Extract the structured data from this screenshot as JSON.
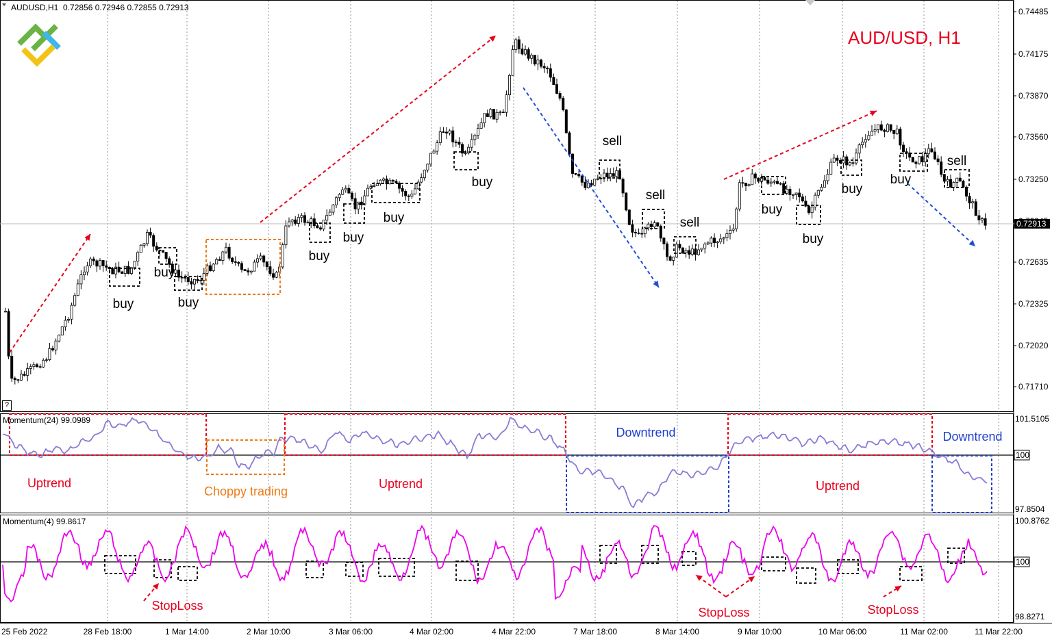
{
  "header": {
    "symbol": "AUDUSD,H1",
    "ohlc": "0.72856 0.72946 0.72855 0.72913"
  },
  "help_glyph": "?",
  "chart_title": "AUD/USD, H1",
  "colors": {
    "title": "#e8001c",
    "up_arrow": "#e8001c",
    "down_arrow": "#1f4fd6",
    "momentum24": "#8a7bd6",
    "momentum4": "#ee00ee",
    "buy_box": "#000000",
    "choppy": "#ef7a16",
    "uptrend_box": "#e8001c",
    "downtrend_box": "#1f3fd0",
    "price_tag_bg": "#000000",
    "logo_green": "#6ab344",
    "logo_yellow": "#f3c316",
    "logo_blue": "#3db6e8"
  },
  "price_axis": {
    "ticks": [
      "0.74485",
      "0.74175",
      "0.73870",
      "0.73560",
      "0.73250",
      "0.72945",
      "0.72635",
      "0.72325",
      "0.72020",
      "0.71710"
    ],
    "current_price": "0.72913"
  },
  "time_axis": {
    "ticks": [
      "25 Feb 2022",
      "28 Feb 18:00",
      "1 Mar 14:00",
      "2 Mar 10:00",
      "3 Mar 06:00",
      "4 Mar 02:00",
      "4 Mar 22:00",
      "7 Mar 18:00",
      "8 Mar 14:00",
      "9 Mar 10:00",
      "10 Mar 06:00",
      "11 Mar 02:00",
      "11 Mar 22:00"
    ]
  },
  "price_annotations": {
    "buy_labels": [
      "buy",
      "buy",
      "buy",
      "buy",
      "buy",
      "buy",
      "buy",
      "buy",
      "buy",
      "buy",
      "buy"
    ],
    "sell_labels": [
      "sell",
      "sell",
      "sell",
      "sell"
    ]
  },
  "momentum24": {
    "label": "Momentum(24) 99.0989",
    "axis": [
      "101.5105",
      "100",
      "97.8504"
    ],
    "zones": {
      "uptrend1": "Uptrend",
      "choppy": "Choppy trading",
      "uptrend2": "Uptrend",
      "downtrend1": "Downtrend",
      "uptrend3": "Uptrend",
      "downtrend2": "Downtrend"
    }
  },
  "momentum4": {
    "label": "Momentum(4) 99.8617",
    "axis": [
      "100.8762",
      "100",
      "98.8271"
    ],
    "stoploss_labels": [
      "StopLoss",
      "StopLoss",
      "StopLoss"
    ]
  }
}
